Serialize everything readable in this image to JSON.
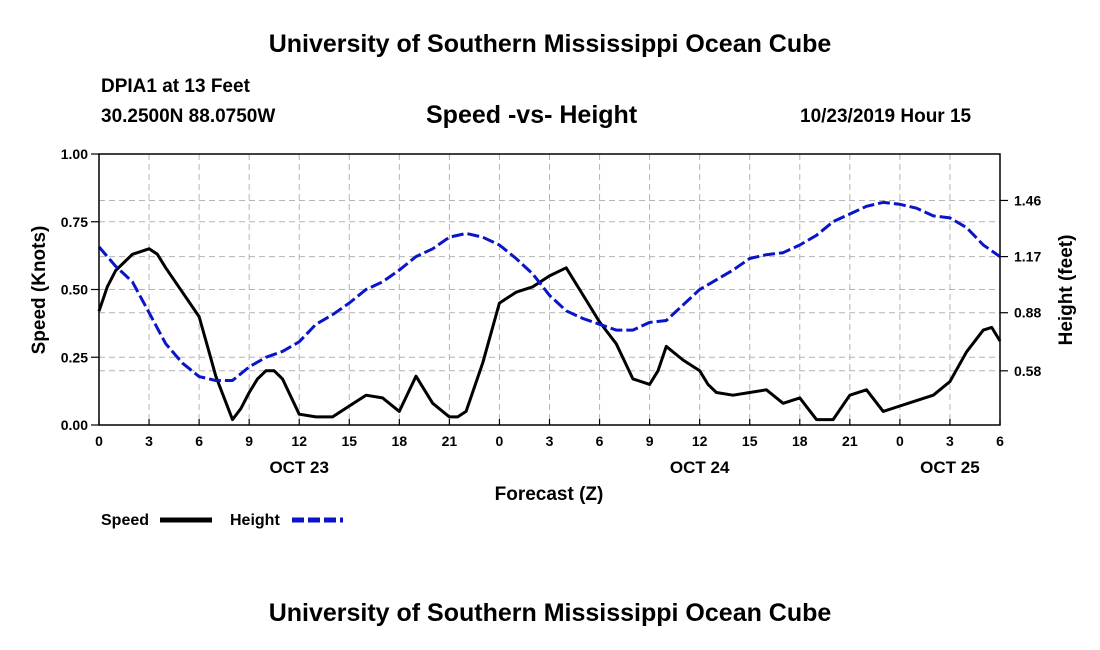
{
  "header": {
    "title": "University of Southern Mississippi Ocean Cube",
    "station": "DPIA1 at 13 Feet",
    "coordinates": "30.2500N 88.0750W",
    "datetime": "10/23/2019 Hour 15"
  },
  "footer": {
    "title": "University of Southern Mississippi Ocean Cube"
  },
  "colors": {
    "speed": "#000000",
    "height": "#0a14c8",
    "grid": "#b4b4b4"
  },
  "chart_data": {
    "type": "line",
    "title": "Speed -vs- Height",
    "xlabel": "Forecast (Z)",
    "ylabel": "Speed (Knots)",
    "y2label": "Height (feet)",
    "xlim": [
      0,
      54
    ],
    "ylim": [
      0,
      1.0
    ],
    "y2lim": [
      0.3,
      1.7
    ],
    "grid": true,
    "x_ticks": [
      0,
      3,
      6,
      9,
      12,
      15,
      18,
      21,
      24,
      27,
      30,
      33,
      36,
      39,
      42,
      45,
      48,
      51,
      54
    ],
    "x_tick_labels": [
      "0",
      "3",
      "6",
      "9",
      "12",
      "15",
      "18",
      "21",
      "0",
      "3",
      "6",
      "9",
      "12",
      "15",
      "18",
      "21",
      "0",
      "3",
      "6"
    ],
    "y_ticks": [
      0,
      0.25,
      0.5,
      0.75,
      1.0
    ],
    "y_tick_labels": [
      "0.00",
      "0.25",
      "0.50",
      "0.75",
      "1.00"
    ],
    "y2_ticks": [
      0.58,
      0.88,
      1.17,
      1.46
    ],
    "y2_tick_labels": [
      "0.58",
      "0.88",
      "1.17",
      "1.46"
    ],
    "date_labels": [
      {
        "x": 12,
        "label": "OCT 23"
      },
      {
        "x": 36,
        "label": "OCT 24"
      },
      {
        "x": 51,
        "label": "OCT 25"
      }
    ],
    "legend": [
      {
        "name": "Speed",
        "style": "solid",
        "color": "#000000"
      },
      {
        "name": "Height",
        "style": "dashed",
        "color": "#0a14c8"
      }
    ],
    "legend_position": "bottom-left",
    "series": [
      {
        "name": "Speed",
        "axis": "left",
        "x": [
          0,
          0.5,
          1,
          2,
          3,
          3.5,
          4,
          5,
          6,
          6.5,
          7,
          8,
          8.5,
          9,
          9.5,
          10,
          10.5,
          11,
          12,
          13,
          14,
          15,
          16,
          17,
          18,
          19,
          20,
          21,
          21.5,
          22,
          23,
          24,
          25,
          26,
          27,
          28,
          29,
          30,
          31,
          32,
          33,
          33.5,
          34,
          35,
          36,
          36.5,
          37,
          38,
          39,
          40,
          41,
          42,
          43,
          44,
          45,
          46,
          47,
          48,
          49,
          50,
          51,
          52,
          53,
          53.5,
          54
        ],
        "values": [
          0.42,
          0.51,
          0.57,
          0.63,
          0.65,
          0.63,
          0.58,
          0.49,
          0.4,
          0.29,
          0.18,
          0.02,
          0.06,
          0.12,
          0.17,
          0.2,
          0.2,
          0.17,
          0.04,
          0.03,
          0.03,
          0.07,
          0.11,
          0.1,
          0.05,
          0.18,
          0.08,
          0.03,
          0.03,
          0.05,
          0.23,
          0.45,
          0.49,
          0.51,
          0.55,
          0.58,
          0.48,
          0.38,
          0.3,
          0.17,
          0.15,
          0.2,
          0.29,
          0.24,
          0.2,
          0.15,
          0.12,
          0.11,
          0.12,
          0.13,
          0.08,
          0.1,
          0.02,
          0.02,
          0.11,
          0.13,
          0.05,
          0.07,
          0.09,
          0.11,
          0.16,
          0.27,
          0.35,
          0.36,
          0.31
        ]
      },
      {
        "name": "Height",
        "axis": "right",
        "x": [
          0,
          1,
          2,
          3,
          4,
          5,
          6,
          7,
          8,
          9,
          10,
          11,
          12,
          13,
          14,
          15,
          16,
          17,
          18,
          19,
          20,
          21,
          22,
          23,
          24,
          25,
          26,
          27,
          28,
          29,
          30,
          31,
          32,
          33,
          34,
          35,
          36,
          37,
          38,
          39,
          40,
          41,
          42,
          43,
          44,
          45,
          46,
          47,
          48,
          49,
          50,
          51,
          52,
          53,
          54
        ],
        "values": [
          1.22,
          1.12,
          1.04,
          0.88,
          0.72,
          0.62,
          0.55,
          0.53,
          0.53,
          0.6,
          0.65,
          0.68,
          0.73,
          0.82,
          0.87,
          0.93,
          1.0,
          1.04,
          1.1,
          1.17,
          1.21,
          1.27,
          1.29,
          1.27,
          1.23,
          1.16,
          1.08,
          0.97,
          0.89,
          0.85,
          0.82,
          0.79,
          0.79,
          0.83,
          0.84,
          0.92,
          1.0,
          1.05,
          1.1,
          1.16,
          1.18,
          1.19,
          1.23,
          1.28,
          1.35,
          1.39,
          1.43,
          1.45,
          1.44,
          1.42,
          1.38,
          1.37,
          1.32,
          1.23,
          1.17
        ]
      }
    ]
  }
}
